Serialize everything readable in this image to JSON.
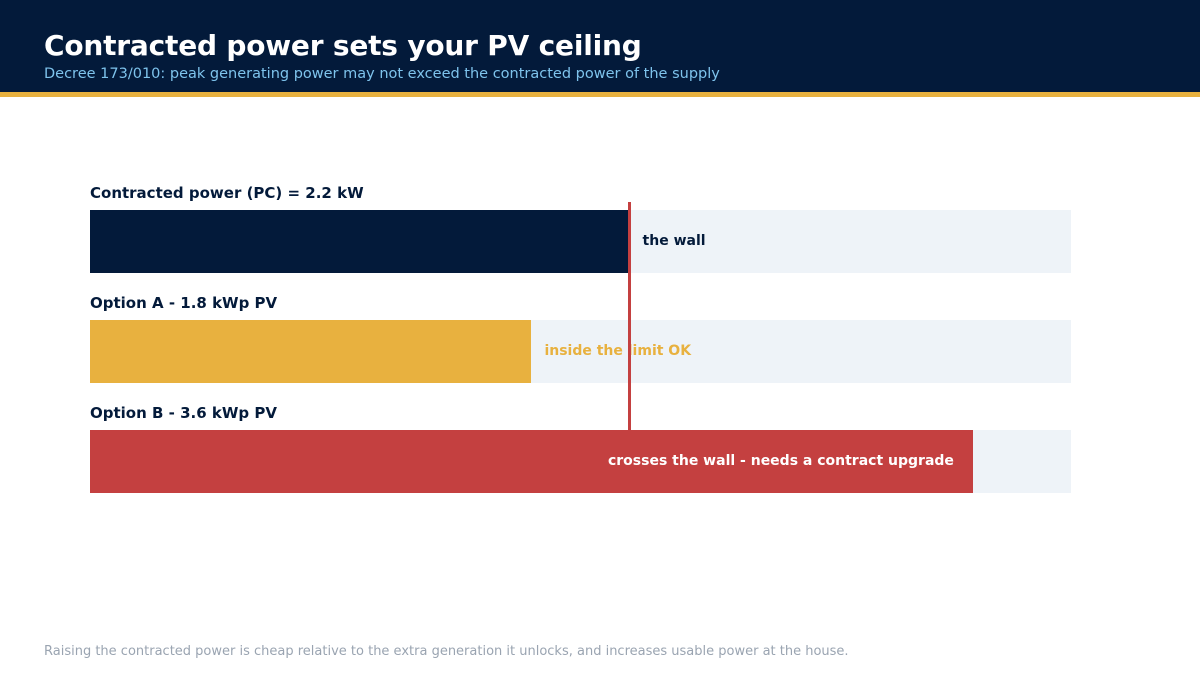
{
  "header": {
    "title": "Contracted power sets your PV ceiling",
    "subtitle": "Decree 173/010: peak generating power may not exceed the contracted power of the supply"
  },
  "chart_data": {
    "type": "bar",
    "orientation": "horizontal",
    "unit": "kW",
    "xlim": [
      0,
      4.0
    ],
    "limit": {
      "value": 2.2,
      "label": "the wall"
    },
    "bars": [
      {
        "label": "Contracted power (PC)  =  2.2 kW",
        "value": 2.2,
        "color": "#031a3a",
        "note": "the wall",
        "note_color": "#031a3a"
      },
      {
        "label": "Option A  -  1.8 kWp PV",
        "value": 1.8,
        "color": "#e8b13f",
        "note": "inside the limit  OK",
        "note_color": "#e8b13f"
      },
      {
        "label": "Option B  -  3.6 kWp PV",
        "value": 3.6,
        "color": "#c44040",
        "note": "crosses the wall - needs a contract upgrade",
        "note_color": "#ffffff"
      }
    ]
  },
  "footer": {
    "note": "Raising the contracted power is cheap relative to the extra generation it unlocks, and increases usable power at the house."
  }
}
